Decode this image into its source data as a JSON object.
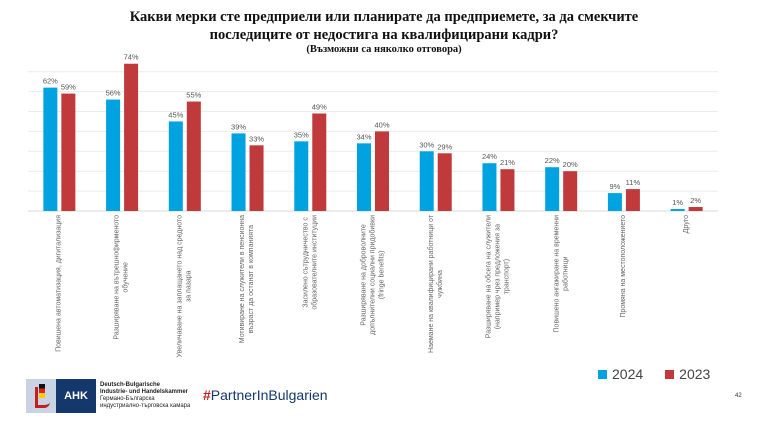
{
  "chart_data": {
    "type": "bar",
    "title": "Какви мерки сте предприели или планирате да предприемете, за да смекчите последиците от недостига на квалифицирани кадри?",
    "title_lines": [
      "Какви мерки сте предприели или планирате да предприемете, за да смекчите",
      "последиците от недостига на квалифицирани кадри?"
    ],
    "subtitle": "(Възможни са няколко отговора)",
    "categories": [
      "Повишена автоматизация, дигитализация",
      "Разширяване на вътрешнофирменото\nобучение",
      "Увеличаване на заплащането над средното\nза пазара",
      "Мотивиране на служители в пенсионна\nвъзраст да останат в компанията",
      "Засилено сътрудничество с\nобразователните институции",
      "Разширяване на доброволните\nдопълнителни социални придобивки\n(fringe benefits)",
      "Наемане на квалифицирани работници от\nчужбина",
      "Разширяване на обсега на служители\n(например чрез предложения за\nтранспорт)",
      "Повишено ангажиране на временни\nработници",
      "Промяна на местоположението",
      "Друго"
    ],
    "series": [
      {
        "name": "2024",
        "color": "#00A3E0",
        "values": [
          62,
          56,
          45,
          39,
          35,
          34,
          30,
          24,
          22,
          9,
          1
        ]
      },
      {
        "name": "2023",
        "color": "#C0393B",
        "values": [
          59,
          74,
          55,
          33,
          49,
          40,
          29,
          21,
          20,
          11,
          2
        ]
      }
    ],
    "value_suffix": "%",
    "xlabel": "",
    "ylabel": "",
    "ylim": [
      0,
      100
    ],
    "grid": true,
    "legend": "bottom-right"
  },
  "footer": {
    "ahk_logo": "AHK",
    "ahk_line1": "Deutsch-Bulgarische",
    "ahk_line2": "Industrie- und Handelskammer",
    "ahk_line3": "Германо-Българска",
    "ahk_line4": "индустриално-търговска камара",
    "partner_hash": "#",
    "partner_text": "PartnerInBulgarien",
    "page_number": "42"
  }
}
